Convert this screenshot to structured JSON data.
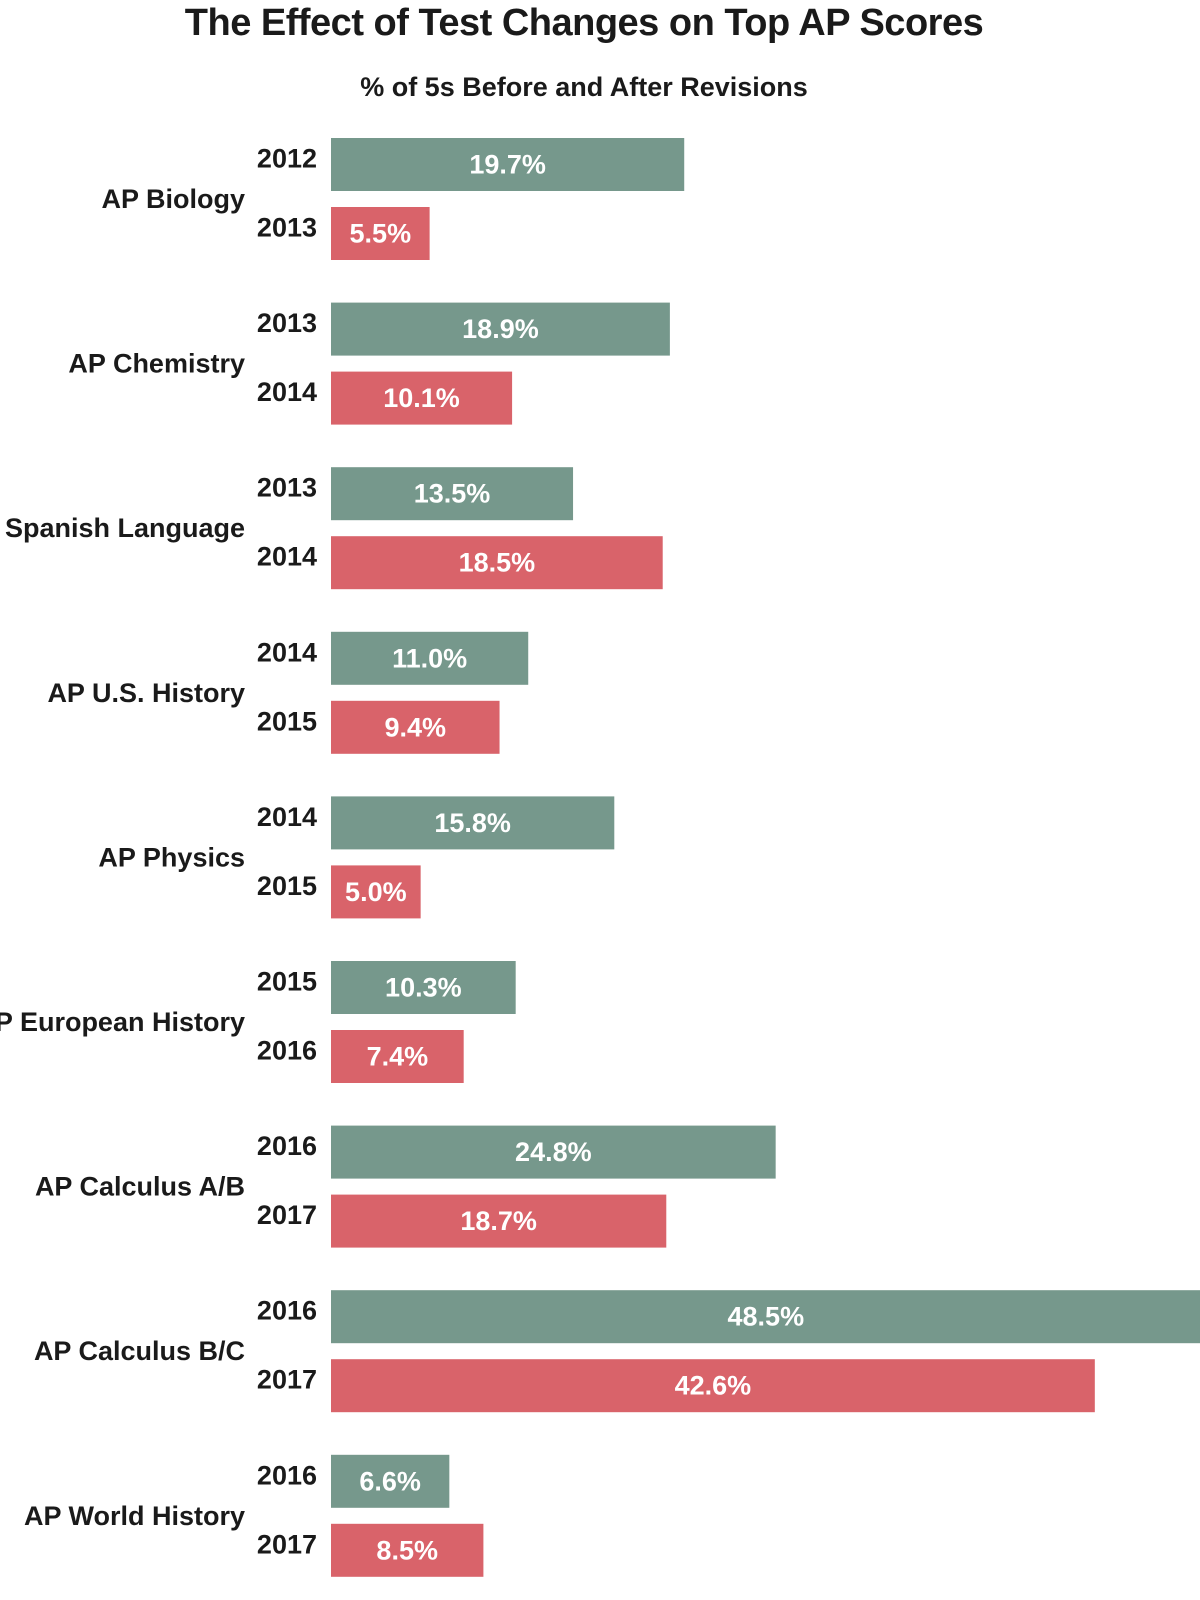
{
  "chart_data": {
    "type": "bar",
    "orientation": "horizontal",
    "title": "The Effect of Test Changes on Top AP Scores",
    "subtitle": "% of 5s Before and After Revisions",
    "xlabel": "",
    "ylabel": "",
    "xlim": [
      0,
      49
    ],
    "grid": false,
    "legend": "none",
    "colors": {
      "before": "#76988c",
      "after": "#d9636a",
      "label_text": "#ffffff"
    },
    "groups": [
      {
        "subject": "AP Biology",
        "bars": [
          {
            "role": "before",
            "year": "2012",
            "value": 19.7,
            "label": "19.7%"
          },
          {
            "role": "after",
            "year": "2013",
            "value": 5.5,
            "label": "5.5%"
          }
        ]
      },
      {
        "subject": "AP Chemistry",
        "bars": [
          {
            "role": "before",
            "year": "2013",
            "value": 18.9,
            "label": "18.9%"
          },
          {
            "role": "after",
            "year": "2014",
            "value": 10.1,
            "label": "10.1%"
          }
        ]
      },
      {
        "subject": "AP Spanish Language",
        "bars": [
          {
            "role": "before",
            "year": "2013",
            "value": 13.5,
            "label": "13.5%"
          },
          {
            "role": "after",
            "year": "2014",
            "value": 18.5,
            "label": "18.5%"
          }
        ]
      },
      {
        "subject": "AP U.S. History",
        "bars": [
          {
            "role": "before",
            "year": "2014",
            "value": 11.0,
            "label": "11.0%"
          },
          {
            "role": "after",
            "year": "2015",
            "value": 9.4,
            "label": "9.4%"
          }
        ]
      },
      {
        "subject": "AP Physics",
        "bars": [
          {
            "role": "before",
            "year": "2014",
            "value": 15.8,
            "label": "15.8%"
          },
          {
            "role": "after",
            "year": "2015",
            "value": 5.0,
            "label": "5.0%"
          }
        ]
      },
      {
        "subject": "AP European History",
        "bars": [
          {
            "role": "before",
            "year": "2015",
            "value": 10.3,
            "label": "10.3%"
          },
          {
            "role": "after",
            "year": "2016",
            "value": 7.4,
            "label": "7.4%"
          }
        ]
      },
      {
        "subject": "AP Calculus A/B",
        "bars": [
          {
            "role": "before",
            "year": "2016",
            "value": 24.8,
            "label": "24.8%"
          },
          {
            "role": "after",
            "year": "2017",
            "value": 18.7,
            "label": "18.7%"
          }
        ]
      },
      {
        "subject": "AP Calculus B/C",
        "bars": [
          {
            "role": "before",
            "year": "2016",
            "value": 48.5,
            "label": "48.5%"
          },
          {
            "role": "after",
            "year": "2017",
            "value": 42.6,
            "label": "42.6%"
          }
        ]
      },
      {
        "subject": "AP World History",
        "bars": [
          {
            "role": "before",
            "year": "2016",
            "value": 6.6,
            "label": "6.6%"
          },
          {
            "role": "after",
            "year": "2017",
            "value": 8.5,
            "label": "8.5%"
          }
        ]
      }
    ]
  }
}
